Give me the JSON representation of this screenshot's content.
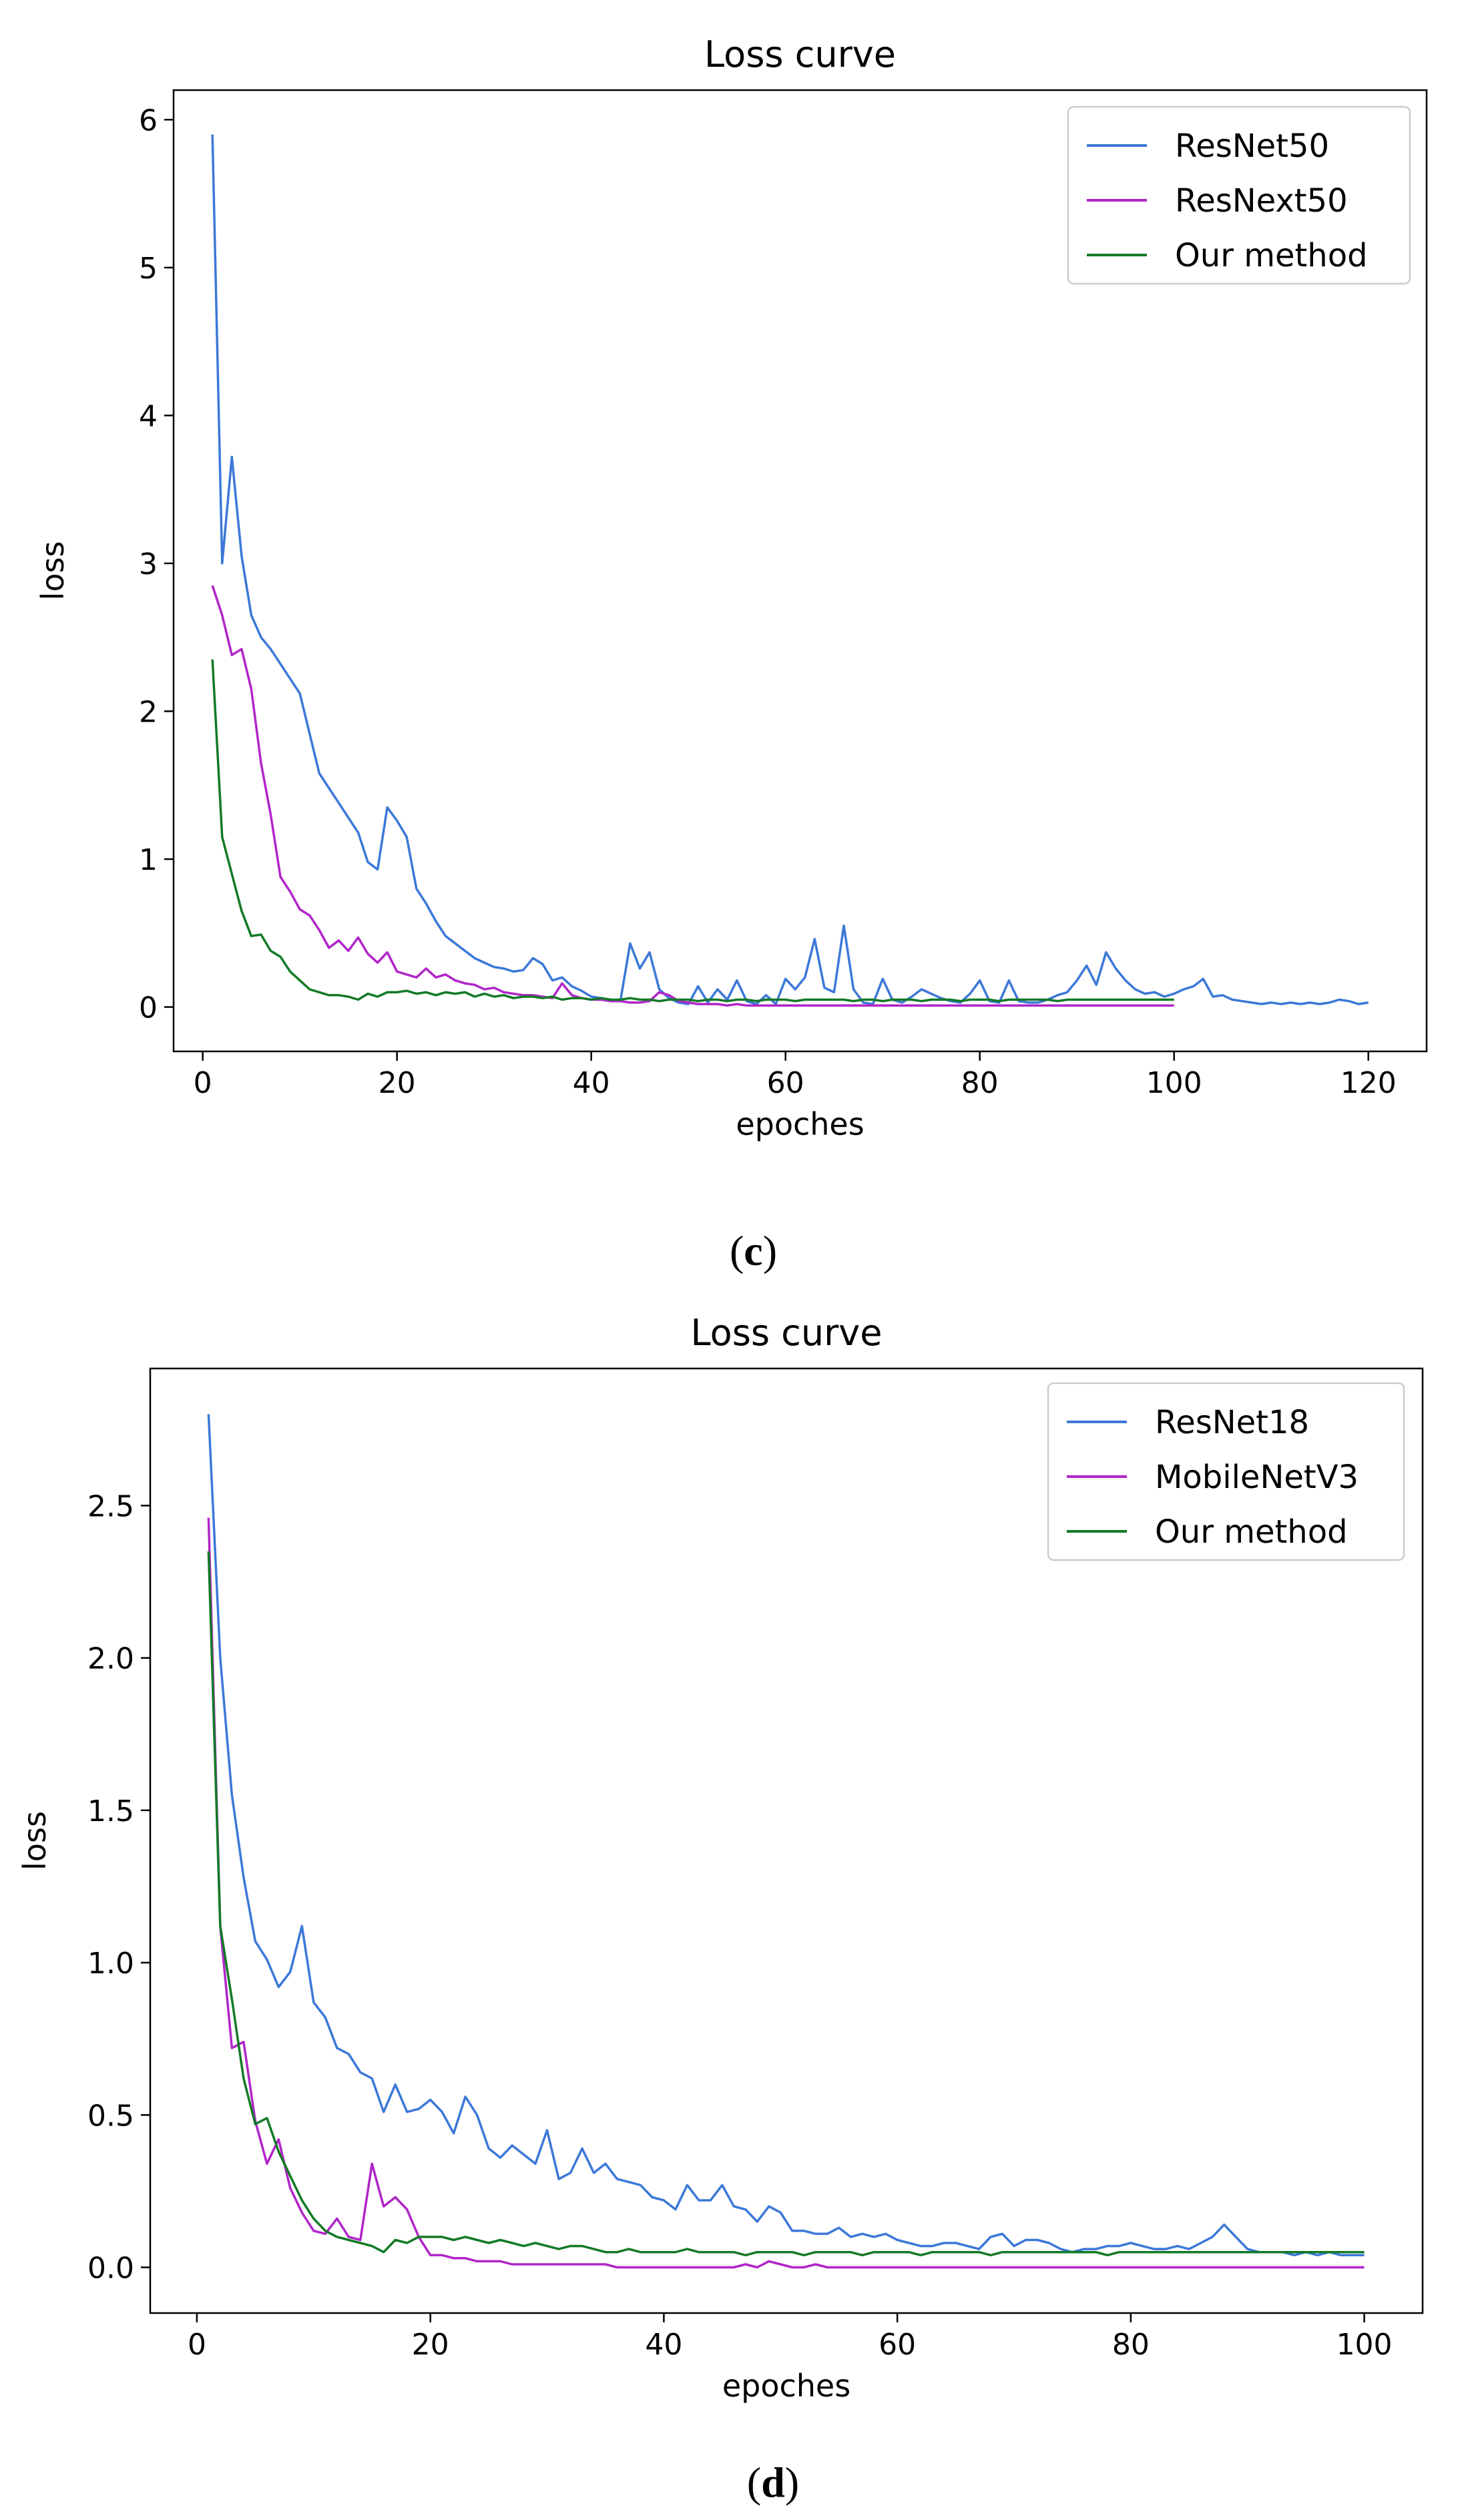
{
  "chart_data": [
    {
      "type": "line",
      "title": "Loss curve",
      "xlabel": "epoches",
      "ylabel": "loss",
      "caption": "c",
      "xlim": [
        -3,
        126
      ],
      "ylim": [
        -0.3,
        6.2
      ],
      "xticks": [
        0,
        20,
        40,
        60,
        80,
        100,
        120
      ],
      "yticks": [
        0,
        1,
        2,
        3,
        4,
        5,
        6
      ],
      "legend_position": "top-right",
      "series": [
        {
          "name": "ResNet50",
          "color": "#3c78d8",
          "x_start": 1,
          "values": [
            5.9,
            3.0,
            3.72,
            3.05,
            2.65,
            2.5,
            2.42,
            2.32,
            2.22,
            2.12,
            1.85,
            1.58,
            1.48,
            1.38,
            1.28,
            1.18,
            0.98,
            0.93,
            1.35,
            1.26,
            1.15,
            0.8,
            0.7,
            0.58,
            0.48,
            0.43,
            0.38,
            0.33,
            0.3,
            0.27,
            0.26,
            0.24,
            0.25,
            0.33,
            0.29,
            0.18,
            0.2,
            0.14,
            0.11,
            0.07,
            0.06,
            0.05,
            0.04,
            0.43,
            0.26,
            0.37,
            0.12,
            0.06,
            0.03,
            0.02,
            0.14,
            0.03,
            0.12,
            0.05,
            0.18,
            0.04,
            0.02,
            0.08,
            0.02,
            0.19,
            0.12,
            0.2,
            0.46,
            0.13,
            0.1,
            0.55,
            0.12,
            0.03,
            0.02,
            0.19,
            0.05,
            0.03,
            0.07,
            0.12,
            0.09,
            0.06,
            0.04,
            0.03,
            0.09,
            0.18,
            0.04,
            0.03,
            0.18,
            0.04,
            0.03,
            0.03,
            0.05,
            0.08,
            0.1,
            0.18,
            0.28,
            0.15,
            0.37,
            0.26,
            0.18,
            0.12,
            0.09,
            0.1,
            0.07,
            0.09,
            0.12,
            0.14,
            0.19,
            0.07,
            0.08,
            0.05,
            0.04,
            0.03,
            0.02,
            0.03,
            0.02,
            0.03,
            0.02,
            0.03,
            0.02,
            0.03,
            0.05,
            0.04,
            0.02,
            0.03
          ]
        },
        {
          "name": "ResNext50",
          "color": "#b026c8",
          "x_start": 1,
          "values": [
            2.85,
            2.65,
            2.38,
            2.42,
            2.15,
            1.65,
            1.3,
            0.88,
            0.78,
            0.66,
            0.62,
            0.52,
            0.4,
            0.45,
            0.38,
            0.47,
            0.36,
            0.3,
            0.37,
            0.24,
            0.22,
            0.2,
            0.26,
            0.2,
            0.22,
            0.18,
            0.16,
            0.15,
            0.12,
            0.13,
            0.1,
            0.09,
            0.08,
            0.08,
            0.07,
            0.06,
            0.16,
            0.08,
            0.06,
            0.05,
            0.05,
            0.04,
            0.04,
            0.03,
            0.03,
            0.04,
            0.1,
            0.08,
            0.04,
            0.03,
            0.02,
            0.02,
            0.02,
            0.01,
            0.02,
            0.01,
            0.01,
            0.01,
            0.01,
            0.01,
            0.01,
            0.01,
            0.01,
            0.01,
            0.01,
            0.01,
            0.01,
            0.01,
            0.01,
            0.01,
            0.01,
            0.01,
            0.01,
            0.01,
            0.01,
            0.01,
            0.01,
            0.01,
            0.01,
            0.01,
            0.01,
            0.01,
            0.01,
            0.01,
            0.01,
            0.01,
            0.01,
            0.01,
            0.01,
            0.01,
            0.01,
            0.01,
            0.01,
            0.01,
            0.01,
            0.01,
            0.01,
            0.01,
            0.01,
            0.01
          ]
        },
        {
          "name": "Our method",
          "color": "#137a26",
          "x_start": 1,
          "values": [
            2.35,
            1.15,
            0.9,
            0.65,
            0.48,
            0.49,
            0.38,
            0.34,
            0.24,
            0.18,
            0.12,
            0.1,
            0.08,
            0.08,
            0.07,
            0.05,
            0.09,
            0.07,
            0.1,
            0.1,
            0.11,
            0.09,
            0.1,
            0.08,
            0.1,
            0.09,
            0.1,
            0.07,
            0.09,
            0.07,
            0.08,
            0.06,
            0.07,
            0.07,
            0.06,
            0.07,
            0.05,
            0.06,
            0.06,
            0.05,
            0.06,
            0.05,
            0.05,
            0.06,
            0.05,
            0.05,
            0.04,
            0.05,
            0.05,
            0.05,
            0.04,
            0.05,
            0.05,
            0.04,
            0.05,
            0.05,
            0.04,
            0.05,
            0.05,
            0.05,
            0.04,
            0.05,
            0.05,
            0.05,
            0.05,
            0.05,
            0.04,
            0.05,
            0.05,
            0.04,
            0.05,
            0.05,
            0.05,
            0.04,
            0.05,
            0.05,
            0.05,
            0.04,
            0.05,
            0.05,
            0.05,
            0.04,
            0.05,
            0.05,
            0.05,
            0.05,
            0.05,
            0.04,
            0.05,
            0.05,
            0.05,
            0.05,
            0.05,
            0.05,
            0.05,
            0.05,
            0.05,
            0.05,
            0.05,
            0.05
          ]
        }
      ]
    },
    {
      "type": "line",
      "title": "Loss curve",
      "xlabel": "epoches",
      "ylabel": "loss",
      "caption": "d",
      "xlim": [
        -4,
        105
      ],
      "ylim": [
        -0.15,
        2.95
      ],
      "xticks": [
        0,
        20,
        40,
        60,
        80,
        100
      ],
      "yticks": [
        0.0,
        0.5,
        1.0,
        1.5,
        2.0,
        2.5
      ],
      "ytick_labels": [
        "0.0",
        "0.5",
        "1.0",
        "1.5",
        "2.0",
        "2.5"
      ],
      "legend_position": "top-right",
      "series": [
        {
          "name": "ResNet18",
          "color": "#3c78d8",
          "x_start": 1,
          "values": [
            2.8,
            2.0,
            1.55,
            1.28,
            1.07,
            1.01,
            0.92,
            0.97,
            1.12,
            0.87,
            0.82,
            0.72,
            0.7,
            0.64,
            0.62,
            0.51,
            0.6,
            0.51,
            0.52,
            0.55,
            0.51,
            0.44,
            0.56,
            0.5,
            0.39,
            0.36,
            0.4,
            0.37,
            0.34,
            0.45,
            0.29,
            0.31,
            0.39,
            0.31,
            0.34,
            0.29,
            0.28,
            0.27,
            0.23,
            0.22,
            0.19,
            0.27,
            0.22,
            0.22,
            0.27,
            0.2,
            0.19,
            0.15,
            0.2,
            0.18,
            0.12,
            0.12,
            0.11,
            0.11,
            0.13,
            0.1,
            0.11,
            0.1,
            0.11,
            0.09,
            0.08,
            0.07,
            0.07,
            0.08,
            0.08,
            0.07,
            0.06,
            0.1,
            0.11,
            0.07,
            0.09,
            0.09,
            0.08,
            0.06,
            0.05,
            0.06,
            0.06,
            0.07,
            0.07,
            0.08,
            0.07,
            0.06,
            0.06,
            0.07,
            0.06,
            0.08,
            0.1,
            0.14,
            0.1,
            0.06,
            0.05,
            0.05,
            0.05,
            0.04,
            0.05,
            0.04,
            0.05,
            0.04,
            0.04,
            0.04
          ]
        },
        {
          "name": "MobileNetV3",
          "color": "#b026c8",
          "x_start": 1,
          "values": [
            2.46,
            1.12,
            0.72,
            0.74,
            0.48,
            0.34,
            0.42,
            0.26,
            0.18,
            0.12,
            0.11,
            0.16,
            0.1,
            0.09,
            0.34,
            0.2,
            0.23,
            0.19,
            0.1,
            0.04,
            0.04,
            0.03,
            0.03,
            0.02,
            0.02,
            0.02,
            0.01,
            0.01,
            0.01,
            0.01,
            0.01,
            0.01,
            0.01,
            0.01,
            0.01,
            0.0,
            0.0,
            0.0,
            0.0,
            0.0,
            0.0,
            0.0,
            0.0,
            0.0,
            0.0,
            0.0,
            0.01,
            0.0,
            0.02,
            0.01,
            0.0,
            0.0,
            0.01,
            0.0,
            0.0,
            0.0,
            0.0,
            0.0,
            0.0,
            0.0,
            0.0,
            0.0,
            0.0,
            0.0,
            0.0,
            0.0,
            0.0,
            0.0,
            0.0,
            0.0,
            0.0,
            0.0,
            0.0,
            0.0,
            0.0,
            0.0,
            0.0,
            0.0,
            0.0,
            0.0,
            0.0,
            0.0,
            0.0,
            0.0,
            0.0,
            0.0,
            0.0,
            0.0,
            0.0,
            0.0,
            0.0,
            0.0,
            0.0,
            0.0,
            0.0,
            0.0,
            0.0,
            0.0,
            0.0,
            0.0
          ]
        },
        {
          "name": "Our method",
          "color": "#137a26",
          "x_start": 1,
          "values": [
            2.35,
            1.12,
            0.88,
            0.62,
            0.47,
            0.49,
            0.38,
            0.3,
            0.22,
            0.16,
            0.12,
            0.1,
            0.09,
            0.08,
            0.07,
            0.05,
            0.09,
            0.08,
            0.1,
            0.1,
            0.1,
            0.09,
            0.1,
            0.09,
            0.08,
            0.09,
            0.08,
            0.07,
            0.08,
            0.07,
            0.06,
            0.07,
            0.07,
            0.06,
            0.05,
            0.05,
            0.06,
            0.05,
            0.05,
            0.05,
            0.05,
            0.06,
            0.05,
            0.05,
            0.05,
            0.05,
            0.04,
            0.05,
            0.05,
            0.05,
            0.05,
            0.04,
            0.05,
            0.05,
            0.05,
            0.05,
            0.04,
            0.05,
            0.05,
            0.05,
            0.05,
            0.04,
            0.05,
            0.05,
            0.05,
            0.05,
            0.05,
            0.04,
            0.05,
            0.05,
            0.05,
            0.05,
            0.05,
            0.05,
            0.05,
            0.05,
            0.05,
            0.04,
            0.05,
            0.05,
            0.05,
            0.05,
            0.05,
            0.05,
            0.05,
            0.05,
            0.05,
            0.05,
            0.05,
            0.05,
            0.05,
            0.05,
            0.05,
            0.05,
            0.05,
            0.05,
            0.05,
            0.05,
            0.05,
            0.05
          ]
        }
      ]
    }
  ]
}
